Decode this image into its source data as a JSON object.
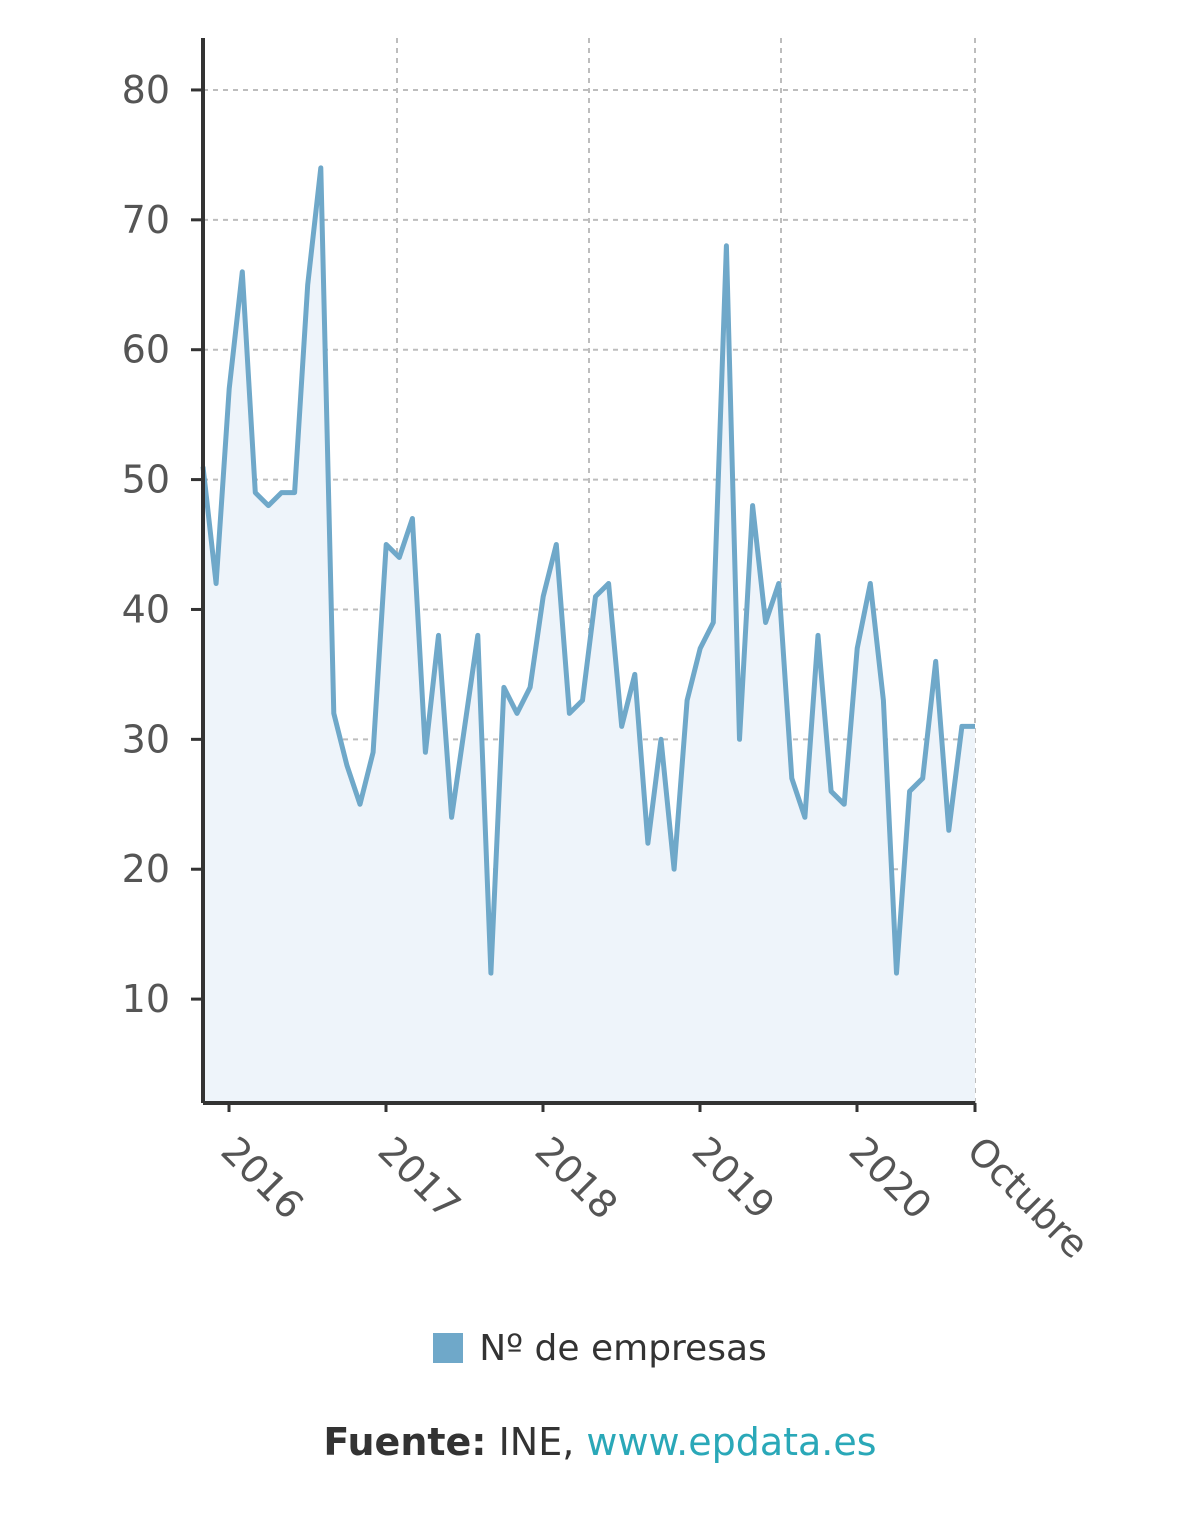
{
  "chart_data": {
    "type": "area",
    "series": [
      {
        "name": "Nº de empresas",
        "values": [
          51,
          42,
          57,
          66,
          49,
          48,
          49,
          49,
          65,
          74,
          32,
          28,
          25,
          29,
          45,
          44,
          47,
          29,
          38,
          24,
          31,
          38,
          12,
          34,
          32,
          34,
          41,
          45,
          32,
          33,
          41,
          42,
          31,
          35,
          22,
          30,
          20,
          33,
          37,
          39,
          68,
          30,
          48,
          39,
          42,
          27,
          24,
          38,
          26,
          25,
          37,
          42,
          33,
          12,
          26,
          27,
          36,
          23,
          31,
          31
        ]
      }
    ],
    "x_tick_labels": [
      "2016",
      "2017",
      "2018",
      "2019",
      "2020",
      "Octubre"
    ],
    "y_ticks": [
      10,
      20,
      30,
      40,
      50,
      60,
      70,
      80
    ],
    "ylim": [
      2,
      84
    ],
    "grid": true,
    "legend_position": "bottom",
    "colors": {
      "line": "#6fa8c9",
      "fill": "#eef4fa",
      "swatch": "#6fa8c9",
      "link": "#2aa8b8"
    }
  },
  "legend": {
    "label": "Nº de empresas"
  },
  "source": {
    "prefix": "Fuente:",
    "text": " INE, ",
    "link": "www.epdata.es"
  }
}
